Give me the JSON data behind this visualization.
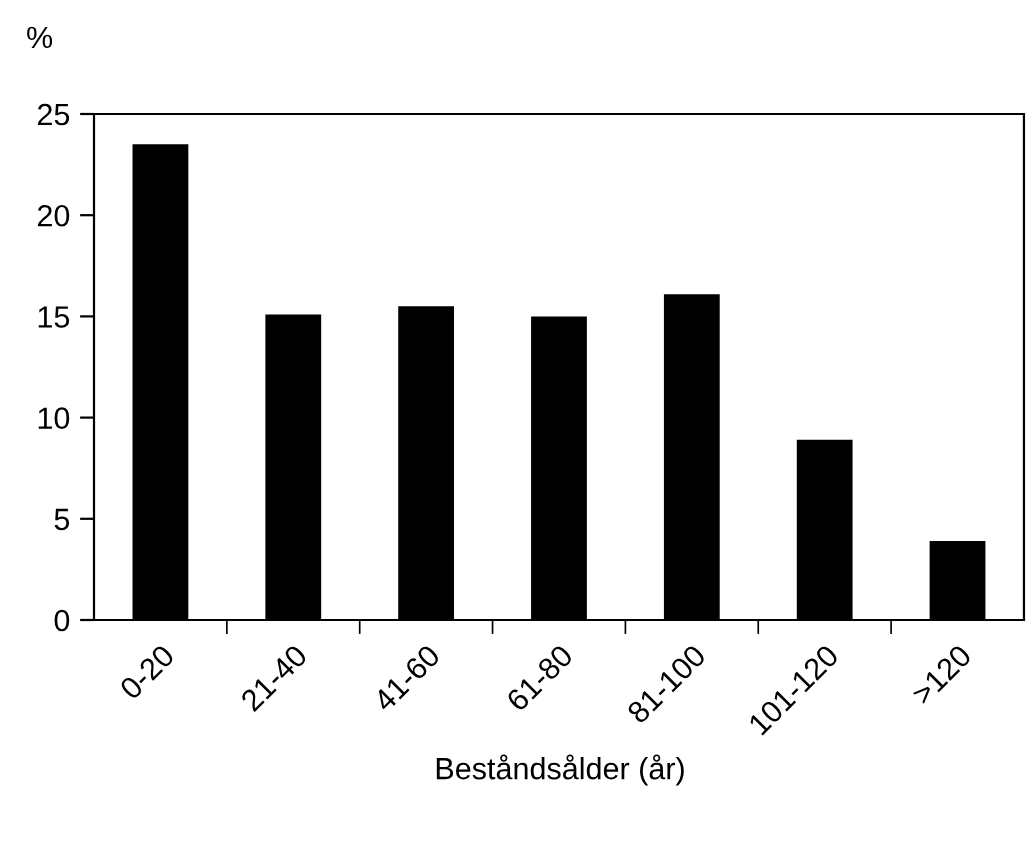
{
  "chart_data": {
    "type": "bar",
    "ylabel": "%",
    "xlabel": "Beståndsålder (år)",
    "categories": [
      "0-20",
      "21-40",
      "41-60",
      "61-80",
      "81-100",
      "101-120",
      ">120"
    ],
    "values": [
      23.5,
      15.1,
      15.5,
      15.0,
      16.1,
      8.9,
      3.9
    ],
    "color": "#000000",
    "ylim": [
      0,
      25
    ],
    "yticks": [
      0,
      5,
      10,
      15,
      20,
      25
    ],
    "grid": false,
    "legend": false
  }
}
